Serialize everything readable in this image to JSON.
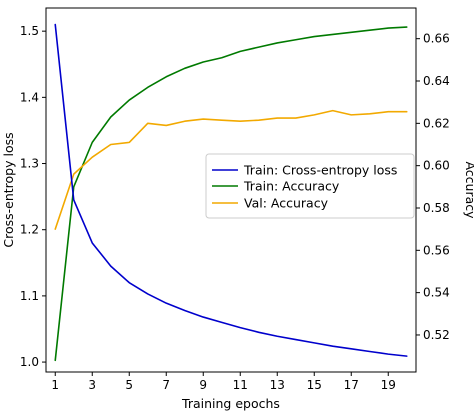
{
  "chart_data": {
    "type": "line",
    "title": "",
    "xlabel": "Training epochs",
    "ylabel_left": "Cross-entropy loss",
    "ylabel_right": "Accuracy",
    "x": [
      1,
      2,
      3,
      4,
      5,
      6,
      7,
      8,
      9,
      10,
      11,
      12,
      13,
      14,
      15,
      16,
      17,
      18,
      19,
      20
    ],
    "xlim": [
      0.5,
      20.5
    ],
    "xticks": [
      "1",
      "3",
      "5",
      "7",
      "9",
      "11",
      "13",
      "15",
      "17",
      "19"
    ],
    "ylim_left": [
      0.985,
      1.535
    ],
    "yticks_left": [
      "1.0",
      "1.1",
      "1.2",
      "1.3",
      "1.4",
      "1.5"
    ],
    "ylim_right": [
      0.5025,
      0.6745
    ],
    "yticks_right": [
      "0.52",
      "0.54",
      "0.56",
      "0.58",
      "0.60",
      "0.62",
      "0.64",
      "0.66"
    ],
    "grid": false,
    "legend_position": "center-right",
    "series": [
      {
        "name": "Train: Cross-entropy loss",
        "axis": "left",
        "color": "#0000cc",
        "values": [
          1.51,
          1.245,
          1.18,
          1.145,
          1.12,
          1.103,
          1.089,
          1.078,
          1.068,
          1.06,
          1.052,
          1.045,
          1.039,
          1.034,
          1.029,
          1.024,
          1.02,
          1.016,
          1.012,
          1.009
        ]
      },
      {
        "name": "Train: Accuracy",
        "axis": "right",
        "color": "#007a00",
        "values": [
          0.508,
          0.59,
          0.611,
          0.623,
          0.631,
          0.637,
          0.642,
          0.646,
          0.649,
          0.651,
          0.654,
          0.656,
          0.658,
          0.6595,
          0.661,
          0.662,
          0.663,
          0.664,
          0.665,
          0.6655
        ]
      },
      {
        "name": "Val: Accuracy",
        "axis": "right",
        "color": "#f2a900",
        "values": [
          0.57,
          0.596,
          0.604,
          0.61,
          0.611,
          0.62,
          0.619,
          0.621,
          0.622,
          0.6215,
          0.621,
          0.6215,
          0.6225,
          0.6225,
          0.624,
          0.626,
          0.624,
          0.6245,
          0.6255,
          0.6255
        ]
      }
    ]
  }
}
